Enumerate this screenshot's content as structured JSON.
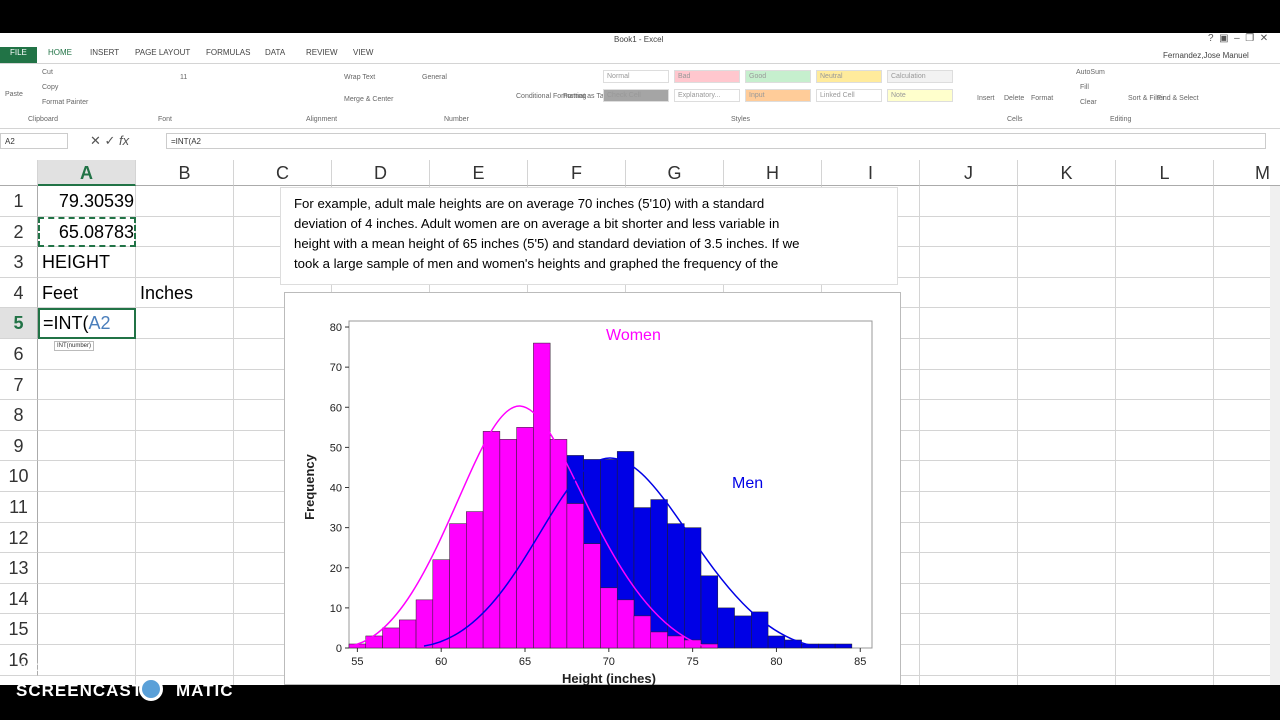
{
  "window": {
    "title": "Book1 - Excel",
    "user": "Fernandez,Jose Manuel"
  },
  "tabs": [
    "FILE",
    "HOME",
    "INSERT",
    "PAGE LAYOUT",
    "FORMULAS",
    "DATA",
    "REVIEW",
    "VIEW"
  ],
  "ribbon": {
    "groups": [
      "Clipboard",
      "Font",
      "Alignment",
      "Number",
      "Styles",
      "Cells",
      "Editing"
    ],
    "clipboard": [
      "Paste",
      "Cut",
      "Copy",
      "Format Painter"
    ],
    "font_size": "11",
    "alignment": [
      "Wrap Text",
      "Merge & Center"
    ],
    "number_format": "General",
    "styles_buttons": [
      "Conditional Formatting",
      "Format as Table"
    ],
    "styles": [
      "Normal",
      "Bad",
      "Good",
      "Neutral",
      "Calculation",
      "Check Cell",
      "Explanatory...",
      "Input",
      "Linked Cell",
      "Note"
    ],
    "cells": [
      "Insert",
      "Delete",
      "Format"
    ],
    "editing": [
      "AutoSum",
      "Fill",
      "Clear",
      "Sort & Filter",
      "Find & Select"
    ]
  },
  "formula_bar": {
    "name_box": "A2",
    "formula": "=INT(A2"
  },
  "columns": [
    "A",
    "B",
    "C",
    "D",
    "E",
    "F",
    "G",
    "H",
    "I",
    "J",
    "K",
    "L",
    "M"
  ],
  "rows": [
    1,
    2,
    3,
    4,
    5,
    6,
    7,
    8,
    9,
    10,
    11,
    12,
    13,
    14,
    15,
    16
  ],
  "cells": {
    "A1": "79.30539",
    "A2": "65.08783",
    "A3": "HEIGHT",
    "A4": "Feet",
    "B4": "Inches"
  },
  "active_cell": {
    "ref": "A5",
    "parts": [
      "=INT(",
      "A2"
    ]
  },
  "tooltip": "INT(number)",
  "text_box": [
    "For example, adult male heights are on average 70 inches  (5'10) with a standard",
    "deviation of 4 inches. Adult women are on average a bit shorter and less variable in",
    "height with a mean height of 65  inches (5'5) and standard deviation of 3.5 inches. If we",
    "took a large sample of men and women's heights and graphed the frequency of the"
  ],
  "chart": {
    "type": "histogram",
    "xlabel": "Height (inches)",
    "ylabel": "Frequency",
    "bins": [
      54.5,
      55.5,
      56.5,
      57.5,
      58.5,
      59.5,
      60.5,
      61.5,
      62.5,
      63.5,
      64.5,
      65.5,
      66.5,
      67.5,
      68.5,
      69.5,
      70.5,
      71.5,
      72.5,
      73.5,
      74.5,
      75.5,
      76.5,
      77.5,
      78.5,
      79.5,
      80.5,
      81.5,
      82.5,
      83.5,
      84.5
    ],
    "series": [
      {
        "name": "Men",
        "color": "#0000e6",
        "values": [
          0,
          0,
          0,
          0,
          1,
          2,
          3,
          5,
          8,
          12,
          18,
          25,
          33,
          48,
          47,
          47,
          49,
          35,
          37,
          31,
          30,
          18,
          10,
          8,
          9,
          3,
          2,
          1,
          1,
          1
        ]
      },
      {
        "name": "Women",
        "color": "#ff00ff",
        "values": [
          1,
          3,
          5,
          7,
          12,
          22,
          31,
          34,
          54,
          52,
          55,
          76,
          52,
          36,
          26,
          15,
          12,
          8,
          4,
          3,
          2,
          1,
          0,
          0,
          0,
          0,
          0,
          0,
          0,
          0
        ]
      }
    ],
    "xlim": [
      54.5,
      85.7
    ],
    "ylim": [
      0,
      81.5
    ],
    "xticks": [
      55,
      60,
      65,
      70,
      75,
      80,
      85
    ],
    "yticks": [
      0,
      10,
      20,
      30,
      40,
      50,
      60,
      70,
      80
    ]
  },
  "watermark": [
    "RECORDED WITH",
    "SCREENCAST",
    "MATIC"
  ]
}
